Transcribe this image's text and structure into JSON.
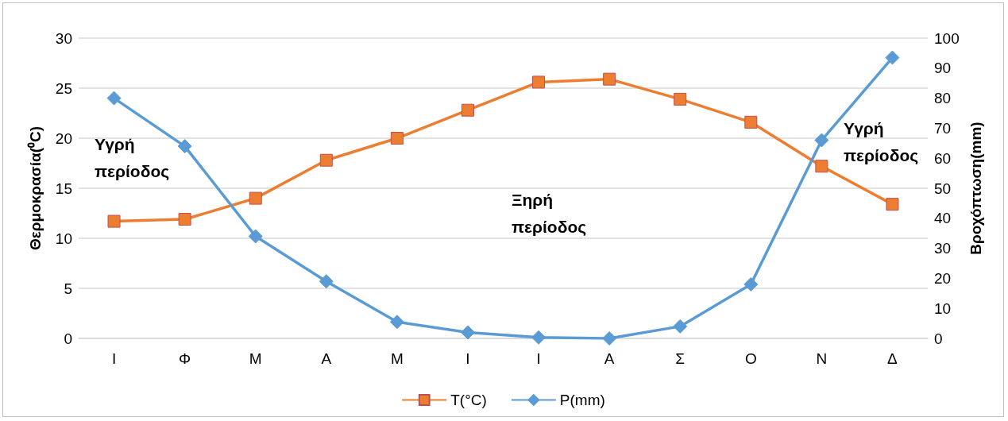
{
  "chart_data": {
    "type": "line",
    "ylabel": "Θερμοκρασία(⁰C)",
    "y2label": "Βροχόπτωση(mm)",
    "categories": [
      "Ι",
      "Φ",
      "Μ",
      "Α",
      "Μ",
      "Ι",
      "Ι",
      "Α",
      "Σ",
      "Ο",
      "Ν",
      "Δ"
    ],
    "series": [
      {
        "name": "T(°C)",
        "color": "#ed7d31",
        "marker": "square",
        "values": [
          11.7,
          11.9,
          14.0,
          17.8,
          20.0,
          22.8,
          25.6,
          25.9,
          23.9,
          21.6,
          17.2,
          13.4
        ]
      },
      {
        "name": "P(mm)",
        "color": "#5b9bd5",
        "marker": "diamond",
        "axis": "y2",
        "values": [
          80,
          64,
          34,
          19,
          5.5,
          2,
          0.3,
          0,
          4,
          18,
          66,
          93.5
        ]
      }
    ],
    "ylim": [
      0,
      30
    ],
    "yticks": [
      0,
      5,
      10,
      15,
      20,
      25,
      30
    ],
    "y2lim": [
      0,
      100
    ],
    "y2ticks": [
      0,
      10,
      20,
      30,
      40,
      50,
      60,
      70,
      80,
      90,
      100
    ],
    "grid": "y",
    "legend": "bottom",
    "annotations": [
      "Υγρή\nπερίοδος",
      "Ξηρή\nπερίοδος",
      "Υγρή\nπερίοδος"
    ]
  }
}
